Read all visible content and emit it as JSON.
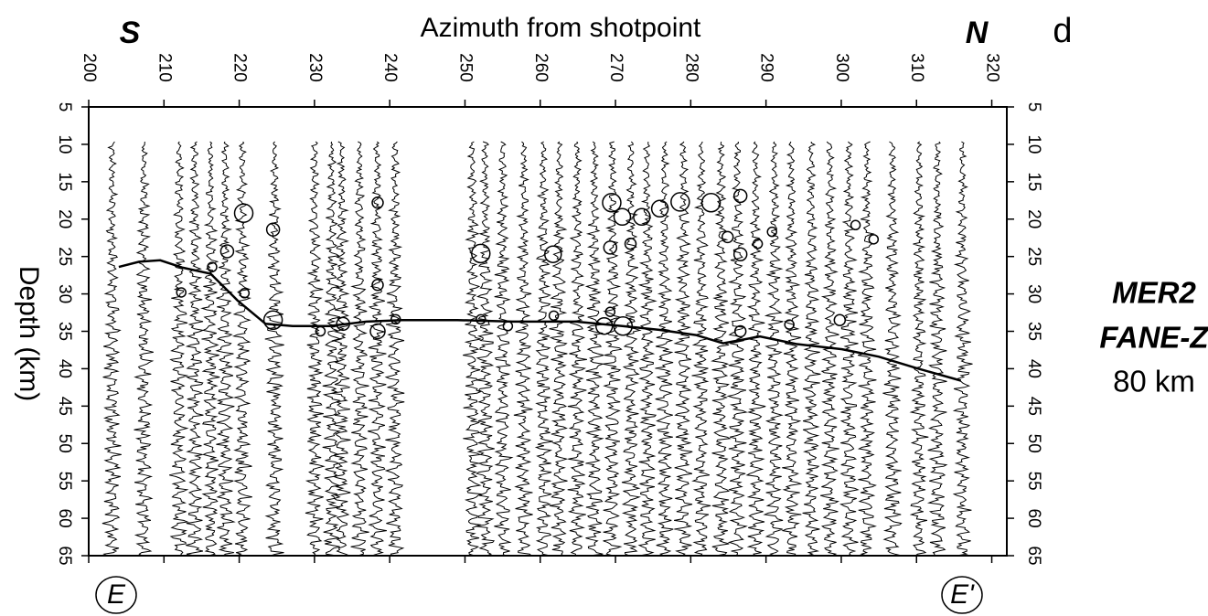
{
  "chart_data": {
    "type": "seismic",
    "xlabel": "Azimuth from shotpoint",
    "ylabel": "Depth (km)",
    "panel_label": "d",
    "left_label": "S",
    "right_label": "N",
    "annotations": [
      "MER2",
      "FANE-Z",
      "80 km"
    ],
    "section_start": "E",
    "section_end": "E'",
    "color": "#000000",
    "xlim": [
      200,
      322
    ],
    "xticks": [
      200,
      210,
      220,
      230,
      240,
      250,
      260,
      270,
      280,
      290,
      300,
      310,
      320
    ],
    "ylim": [
      5,
      65
    ],
    "y_inverted": true,
    "yticks": [
      5,
      10,
      15,
      20,
      25,
      30,
      35,
      40,
      45,
      50,
      55,
      60,
      65
    ],
    "traces": [
      203.1,
      207.3,
      212.0,
      214.1,
      216.2,
      218.1,
      220.4,
      224.7,
      230.0,
      232.3,
      233.6,
      236.0,
      238.3,
      240.7,
      251.0,
      252.7,
      255.0,
      257.8,
      260.4,
      262.5,
      264.9,
      267.2,
      269.6,
      272.1,
      274.2,
      276.5,
      279.0,
      281.4,
      284.0,
      286.2,
      288.6,
      291.1,
      293.4,
      296.0,
      298.5,
      301.0,
      303.4,
      306.8,
      310.3,
      312.8,
      316.1
    ],
    "picks": {
      "x": [
        220.6,
        224.5,
        218.4,
        216.4,
        212.3,
        220.7,
        224.5,
        230.8,
        233.8,
        238.4,
        240.8,
        238.4,
        238.4,
        252.1,
        252.1,
        255.7,
        261.8,
        261.7,
        269.5,
        269.3,
        272.0,
        269.3,
        268.5,
        271.0,
        270.9,
        273.5,
        275.9,
        278.6,
        282.7,
        286.6,
        284.9,
        286.6,
        286.6,
        288.9,
        290.8,
        293.1,
        299.8,
        301.9,
        304.3
      ],
      "y": [
        19.2,
        21.4,
        24.3,
        26.4,
        29.8,
        29.9,
        33.5,
        35.0,
        34.0,
        35.0,
        33.4,
        17.8,
        28.8,
        24.6,
        33.4,
        34.3,
        32.9,
        24.7,
        17.8,
        23.8,
        23.3,
        32.4,
        34.3,
        34.3,
        19.7,
        19.7,
        18.6,
        17.7,
        17.8,
        16.9,
        22.4,
        24.7,
        35.0,
        23.3,
        21.7,
        34.1,
        33.5,
        20.8,
        22.7
      ],
      "size": [
        10,
        7,
        7,
        5,
        5,
        5,
        10,
        5,
        7,
        8,
        5,
        6,
        6,
        10,
        5,
        5,
        5,
        9,
        10,
        7,
        6,
        5,
        9,
        10,
        9,
        9,
        9,
        10,
        10,
        7,
        6,
        7,
        6,
        5,
        5,
        5,
        6,
        5,
        5
      ]
    },
    "moho": {
      "x": [
        204.0,
        206.7,
        209.5,
        212.5,
        216.2,
        219.8,
        223.5,
        227.1,
        232.0,
        236.9,
        241.7,
        249.0,
        256.3,
        261.2,
        264.8,
        270.9,
        275.8,
        280.7,
        284.3,
        289.2,
        294.0,
        300.1,
        305.0,
        309.9,
        315.9
      ],
      "y": [
        26.4,
        25.7,
        25.5,
        26.5,
        27.3,
        30.9,
        34.0,
        34.3,
        34.3,
        33.7,
        33.5,
        33.5,
        33.7,
        33.7,
        33.7,
        34.3,
        34.8,
        35.5,
        36.6,
        35.7,
        36.7,
        37.4,
        38.4,
        39.9,
        41.6
      ]
    }
  }
}
